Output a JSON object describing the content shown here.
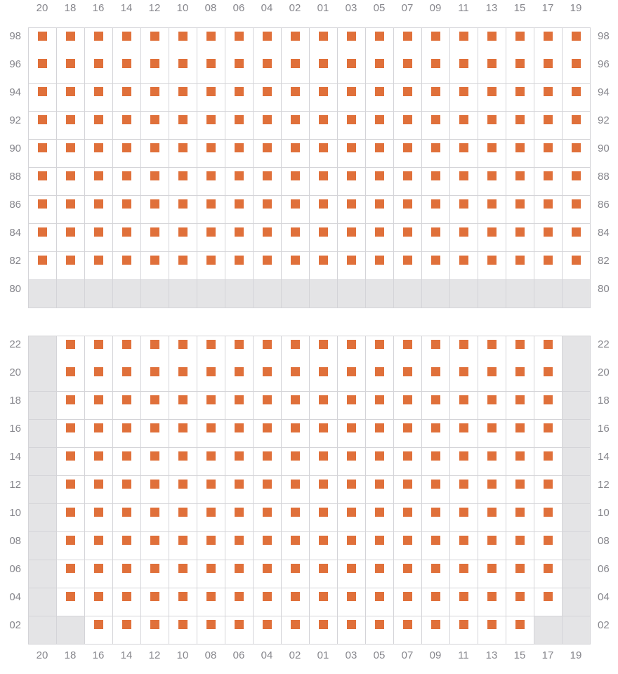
{
  "colors": {
    "seat_available": "#e0703a",
    "cell_unavailable": "#e4e4e6",
    "grid_line": "#d4d4d8",
    "label_text": "#86868c",
    "cell_background": "#ffffff",
    "page_background": "#ffffff"
  },
  "column_labels": [
    "20",
    "18",
    "16",
    "14",
    "12",
    "10",
    "08",
    "06",
    "04",
    "02",
    "01",
    "03",
    "05",
    "07",
    "09",
    "11",
    "13",
    "15",
    "17",
    "19"
  ],
  "sections": [
    {
      "name": "upper",
      "rows": [
        {
          "label": "98",
          "seats": [
            1,
            1,
            1,
            1,
            1,
            1,
            1,
            1,
            1,
            1,
            1,
            1,
            1,
            1,
            1,
            1,
            1,
            1,
            1,
            1
          ]
        },
        {
          "label": "96",
          "seats": [
            1,
            1,
            1,
            1,
            1,
            1,
            1,
            1,
            1,
            1,
            1,
            1,
            1,
            1,
            1,
            1,
            1,
            1,
            1,
            1
          ]
        },
        {
          "label": "94",
          "seats": [
            1,
            1,
            1,
            1,
            1,
            1,
            1,
            1,
            1,
            1,
            1,
            1,
            1,
            1,
            1,
            1,
            1,
            1,
            1,
            1
          ]
        },
        {
          "label": "92",
          "seats": [
            1,
            1,
            1,
            1,
            1,
            1,
            1,
            1,
            1,
            1,
            1,
            1,
            1,
            1,
            1,
            1,
            1,
            1,
            1,
            1
          ]
        },
        {
          "label": "90",
          "seats": [
            1,
            1,
            1,
            1,
            1,
            1,
            1,
            1,
            1,
            1,
            1,
            1,
            1,
            1,
            1,
            1,
            1,
            1,
            1,
            1
          ]
        },
        {
          "label": "88",
          "seats": [
            1,
            1,
            1,
            1,
            1,
            1,
            1,
            1,
            1,
            1,
            1,
            1,
            1,
            1,
            1,
            1,
            1,
            1,
            1,
            1
          ]
        },
        {
          "label": "86",
          "seats": [
            1,
            1,
            1,
            1,
            1,
            1,
            1,
            1,
            1,
            1,
            1,
            1,
            1,
            1,
            1,
            1,
            1,
            1,
            1,
            1
          ]
        },
        {
          "label": "84",
          "seats": [
            1,
            1,
            1,
            1,
            1,
            1,
            1,
            1,
            1,
            1,
            1,
            1,
            1,
            1,
            1,
            1,
            1,
            1,
            1,
            1
          ]
        },
        {
          "label": "82",
          "seats": [
            1,
            1,
            1,
            1,
            1,
            1,
            1,
            1,
            1,
            1,
            1,
            1,
            1,
            1,
            1,
            1,
            1,
            1,
            1,
            1
          ]
        },
        {
          "label": "80",
          "seats": [
            0,
            0,
            0,
            0,
            0,
            0,
            0,
            0,
            0,
            0,
            0,
            0,
            0,
            0,
            0,
            0,
            0,
            0,
            0,
            0
          ]
        }
      ]
    },
    {
      "name": "lower",
      "rows": [
        {
          "label": "22",
          "seats": [
            0,
            1,
            1,
            1,
            1,
            1,
            1,
            1,
            1,
            1,
            1,
            1,
            1,
            1,
            1,
            1,
            1,
            1,
            1,
            0
          ]
        },
        {
          "label": "20",
          "seats": [
            0,
            1,
            1,
            1,
            1,
            1,
            1,
            1,
            1,
            1,
            1,
            1,
            1,
            1,
            1,
            1,
            1,
            1,
            1,
            0
          ]
        },
        {
          "label": "18",
          "seats": [
            0,
            1,
            1,
            1,
            1,
            1,
            1,
            1,
            1,
            1,
            1,
            1,
            1,
            1,
            1,
            1,
            1,
            1,
            1,
            0
          ]
        },
        {
          "label": "16",
          "seats": [
            0,
            1,
            1,
            1,
            1,
            1,
            1,
            1,
            1,
            1,
            1,
            1,
            1,
            1,
            1,
            1,
            1,
            1,
            1,
            0
          ]
        },
        {
          "label": "14",
          "seats": [
            0,
            1,
            1,
            1,
            1,
            1,
            1,
            1,
            1,
            1,
            1,
            1,
            1,
            1,
            1,
            1,
            1,
            1,
            1,
            0
          ]
        },
        {
          "label": "12",
          "seats": [
            0,
            1,
            1,
            1,
            1,
            1,
            1,
            1,
            1,
            1,
            1,
            1,
            1,
            1,
            1,
            1,
            1,
            1,
            1,
            0
          ]
        },
        {
          "label": "10",
          "seats": [
            0,
            1,
            1,
            1,
            1,
            1,
            1,
            1,
            1,
            1,
            1,
            1,
            1,
            1,
            1,
            1,
            1,
            1,
            1,
            0
          ]
        },
        {
          "label": "08",
          "seats": [
            0,
            1,
            1,
            1,
            1,
            1,
            1,
            1,
            1,
            1,
            1,
            1,
            1,
            1,
            1,
            1,
            1,
            1,
            1,
            0
          ]
        },
        {
          "label": "06",
          "seats": [
            0,
            1,
            1,
            1,
            1,
            1,
            1,
            1,
            1,
            1,
            1,
            1,
            1,
            1,
            1,
            1,
            1,
            1,
            1,
            0
          ]
        },
        {
          "label": "04",
          "seats": [
            0,
            1,
            1,
            1,
            1,
            1,
            1,
            1,
            1,
            1,
            1,
            1,
            1,
            1,
            1,
            1,
            1,
            1,
            1,
            0
          ]
        },
        {
          "label": "02",
          "seats": [
            0,
            0,
            1,
            1,
            1,
            1,
            1,
            1,
            1,
            1,
            1,
            1,
            1,
            1,
            1,
            1,
            1,
            1,
            0,
            0
          ]
        }
      ]
    }
  ]
}
